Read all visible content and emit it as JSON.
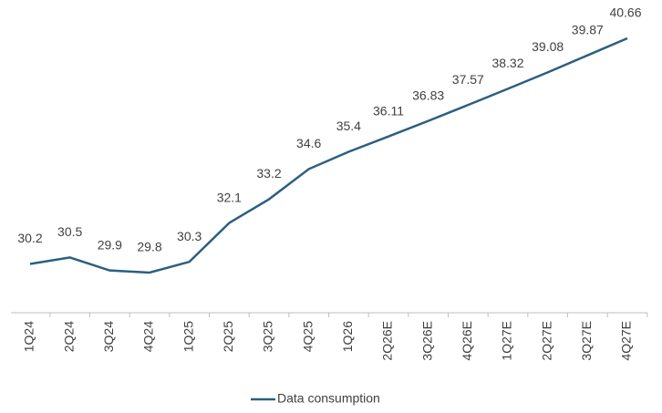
{
  "chart_data": {
    "type": "line",
    "categories": [
      "1Q24",
      "2Q24",
      "3Q24",
      "4Q24",
      "1Q25",
      "2Q25",
      "3Q25",
      "4Q25",
      "1Q26",
      "2Q26E",
      "3Q26E",
      "4Q26E",
      "1Q27E",
      "2Q27E",
      "3Q27E",
      "4Q27E"
    ],
    "series": [
      {
        "name": "Data consumption",
        "color": "#2b5f80",
        "values": [
          30.2,
          30.5,
          29.9,
          29.8,
          30.3,
          32.1,
          33.2,
          34.6,
          35.4,
          36.11,
          36.83,
          37.57,
          38.32,
          39.08,
          39.87,
          40.66
        ]
      }
    ],
    "legend": "bottom"
  }
}
